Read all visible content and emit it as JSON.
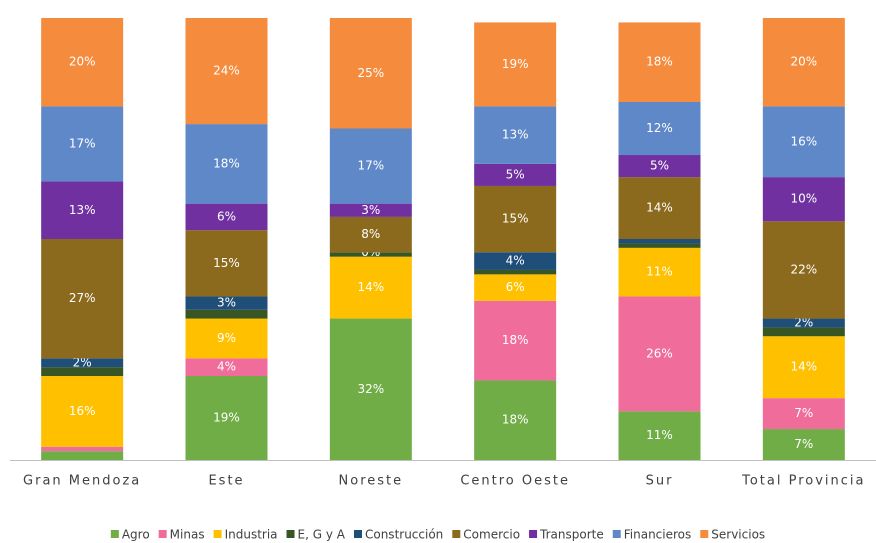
{
  "chart_data": {
    "type": "stacked_bar",
    "categories": [
      "Gran Mendoza",
      "Este",
      "Noreste",
      "Centro Oeste",
      "Sur",
      "Total Provincia"
    ],
    "ylim": [
      0,
      100
    ],
    "series": [
      {
        "name": "Agro",
        "color": "#70ad47",
        "values": [
          2,
          19,
          32,
          18,
          11,
          7
        ],
        "value_labels": [
          null,
          "19%",
          "32%",
          "18%",
          "11%",
          "7%"
        ]
      },
      {
        "name": "Minas",
        "color": "#f06c9b",
        "values": [
          1,
          4,
          0,
          18,
          26,
          7
        ],
        "value_labels": [
          null,
          "4%",
          null,
          "18%",
          "26%",
          "7%"
        ]
      },
      {
        "name": "Industria",
        "color": "#ffc000",
        "values": [
          16,
          9,
          14,
          6,
          11,
          14
        ],
        "value_labels": [
          "16%",
          "9%",
          "14%",
          "6%",
          "11%",
          "14%"
        ]
      },
      {
        "name": "E, G y A",
        "color": "#375623",
        "values": [
          2,
          2,
          1,
          1,
          1,
          2
        ],
        "value_labels": [
          null,
          null,
          null,
          null,
          null,
          null
        ]
      },
      {
        "name": "Construcción",
        "color": "#1f4e79",
        "values": [
          2,
          3,
          0,
          4,
          1,
          2
        ],
        "value_labels": [
          "2%",
          "3%",
          "0%",
          "4%",
          null,
          "2%"
        ]
      },
      {
        "name": "Comercio",
        "color": "#8b6a1e",
        "values": [
          27,
          15,
          8,
          15,
          14,
          22
        ],
        "value_labels": [
          "27%",
          "15%",
          "8%",
          "15%",
          "14%",
          "22%"
        ]
      },
      {
        "name": "Transporte",
        "color": "#7030a0",
        "values": [
          13,
          6,
          3,
          5,
          5,
          10
        ],
        "value_labels": [
          "13%",
          "6%",
          "3%",
          "5%",
          "5%",
          "10%"
        ]
      },
      {
        "name": "Financieros",
        "color": "#5f88c8",
        "values": [
          17,
          18,
          17,
          13,
          12,
          16
        ],
        "value_labels": [
          "17%",
          "18%",
          "17%",
          "13%",
          "12%",
          "16%"
        ]
      },
      {
        "name": "Servicios",
        "color": "#f58b3c",
        "values": [
          20,
          24,
          25,
          19,
          18,
          20
        ],
        "value_labels": [
          "20%",
          "24%",
          "25%",
          "19%",
          "18%",
          "20%"
        ]
      }
    ]
  }
}
